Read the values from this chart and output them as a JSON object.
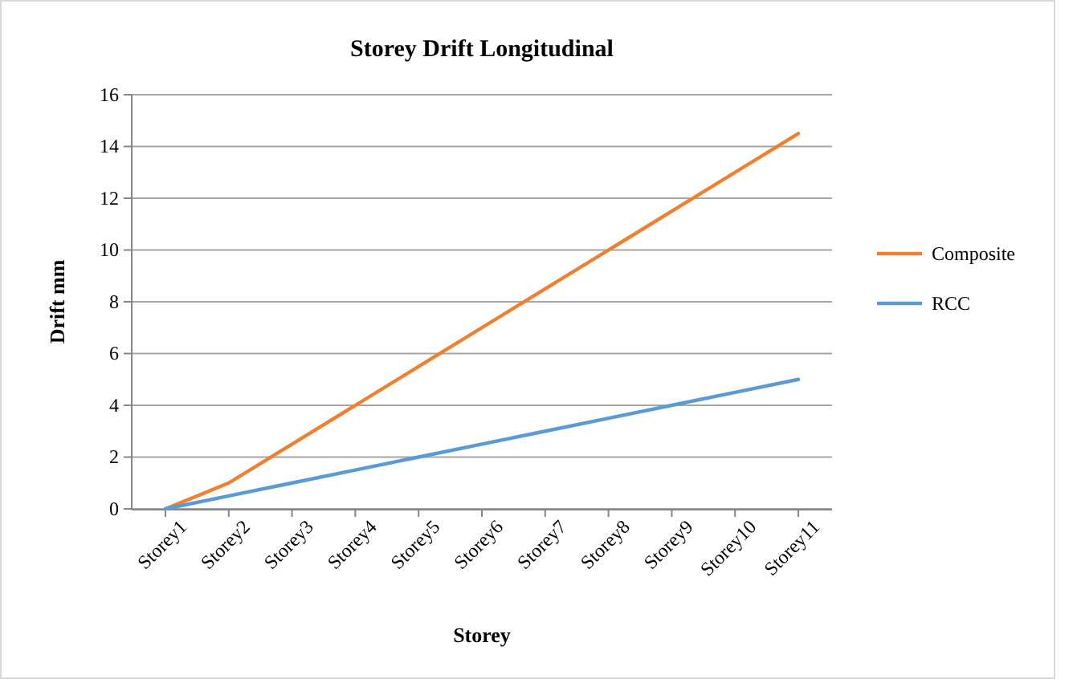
{
  "chart_data": {
    "type": "line",
    "title": "Storey Drift Longitudinal",
    "xlabel": "Storey",
    "ylabel": "Drift mm",
    "categories": [
      "Storey1",
      "Storey2",
      "Storey3",
      "Storey4",
      "Storey5",
      "Storey6",
      "Storey7",
      "Storey8",
      "Storey9",
      "Storey10",
      "Storey11"
    ],
    "series": [
      {
        "name": "Composite",
        "color": "#f08030",
        "values": [
          0,
          1,
          2.5,
          4,
          5.5,
          7,
          8.5,
          10,
          11.5,
          13,
          14.5
        ]
      },
      {
        "name": "RCC",
        "color": "#5b9bd5",
        "values": [
          0,
          0.5,
          1,
          1.5,
          2,
          2.5,
          3,
          3.5,
          4,
          4.5,
          5
        ]
      }
    ],
    "ylim": [
      0,
      16
    ],
    "yticks": [
      0,
      2,
      4,
      6,
      8,
      10,
      12,
      14,
      16
    ],
    "grid": "y",
    "legend": "right",
    "marker": "none",
    "line_style": "solid"
  }
}
